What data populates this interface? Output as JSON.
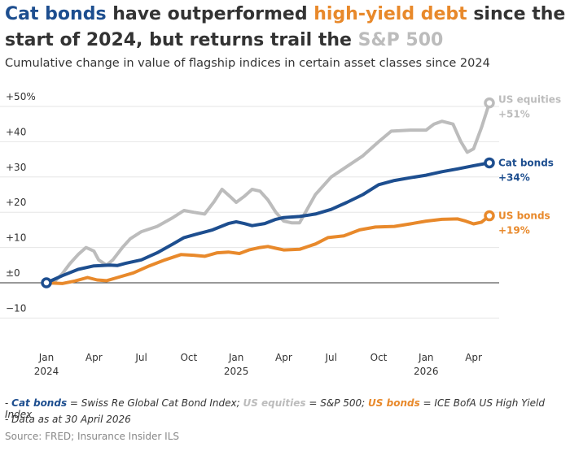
{
  "title": {
    "part1": "Cat bonds",
    "part2": " have outperformed ",
    "part3": "high-yield debt",
    "part4": " since the start of 2024, but returns trail the ",
    "part5": "S&P 500"
  },
  "subtitle": "Cumulative change in value of flagship indices in certain asset classes since 2024",
  "notes": {
    "cat_label": "Cat bonds",
    "cat_text": " = Swiss Re Global Cat Bond Index; ",
    "us_eq_label": "US equities",
    "us_eq_text": " = S&P 500; ",
    "us_bonds_label": "US bonds",
    "us_bonds_text": " = ICE BofA US High Yield Index",
    "data_date": "- Data as at 30 April 2026"
  },
  "source": "Source: FRED; Insurance Insider ILS",
  "colors": {
    "cat_bonds": "#1d4e8f",
    "us_equities": "#bcbcbc",
    "us_bonds": "#e8892b",
    "grid": "#e6e6e6",
    "zero_line": "#333333"
  },
  "chart_data": {
    "type": "line",
    "ylim": [
      -10,
      50
    ],
    "y_ticks": [
      50,
      40,
      30,
      20,
      10,
      0,
      -10
    ],
    "y_tick_labels": [
      "+50%",
      "+40",
      "+30",
      "+20",
      "+10",
      "±0",
      "−10"
    ],
    "x_ticks": [
      {
        "x": 0,
        "label": "Jan",
        "year": "2024"
      },
      {
        "x": 3,
        "label": "Apr",
        "year": ""
      },
      {
        "x": 6,
        "label": "Jul",
        "year": ""
      },
      {
        "x": 9,
        "label": "Oct",
        "year": ""
      },
      {
        "x": 12,
        "label": "Jan",
        "year": "2025"
      },
      {
        "x": 15,
        "label": "Apr",
        "year": ""
      },
      {
        "x": 18,
        "label": "Jul",
        "year": ""
      },
      {
        "x": 21,
        "label": "Oct",
        "year": ""
      },
      {
        "x": 24,
        "label": "Jan",
        "year": "2026"
      },
      {
        "x": 27,
        "label": "Apr",
        "year": ""
      }
    ],
    "xlim": [
      0,
      28
    ],
    "series": [
      {
        "name": "US equities",
        "final_label": "+51%",
        "color": "#bcbcbc",
        "points": [
          [
            0,
            0
          ],
          [
            0.5,
            0.3
          ],
          [
            1,
            2.5
          ],
          [
            1.5,
            5.5
          ],
          [
            2,
            8
          ],
          [
            2.5,
            10
          ],
          [
            3,
            9
          ],
          [
            3.3,
            6.5
          ],
          [
            3.8,
            5
          ],
          [
            4.2,
            6.5
          ],
          [
            4.8,
            10
          ],
          [
            5.3,
            12.5
          ],
          [
            6,
            14.5
          ],
          [
            7,
            16
          ],
          [
            8,
            18.5
          ],
          [
            8.7,
            20.5
          ],
          [
            9.3,
            20
          ],
          [
            10,
            19.5
          ],
          [
            10.6,
            23
          ],
          [
            11.1,
            26.5
          ],
          [
            11.6,
            24.5
          ],
          [
            12,
            22.8
          ],
          [
            12.5,
            24.5
          ],
          [
            13,
            26.5
          ],
          [
            13.5,
            26
          ],
          [
            14,
            23.5
          ],
          [
            14.5,
            20
          ],
          [
            15,
            17.5
          ],
          [
            15.5,
            17
          ],
          [
            16,
            17
          ],
          [
            16.5,
            21
          ],
          [
            17,
            25
          ],
          [
            18,
            30
          ],
          [
            19,
            33
          ],
          [
            20,
            36
          ],
          [
            21,
            40
          ],
          [
            21.8,
            43
          ],
          [
            23,
            43.3
          ],
          [
            24,
            43.3
          ],
          [
            24.5,
            45
          ],
          [
            25,
            45.8
          ],
          [
            25.7,
            45
          ],
          [
            26.2,
            40
          ],
          [
            26.6,
            37
          ],
          [
            27,
            38
          ],
          [
            27.5,
            44
          ],
          [
            28,
            51
          ]
        ]
      },
      {
        "name": "Cat bonds",
        "final_label": "+34%",
        "color": "#1d4e8f",
        "points": [
          [
            0,
            0
          ],
          [
            1,
            2
          ],
          [
            2,
            3.8
          ],
          [
            3,
            4.8
          ],
          [
            4,
            5
          ],
          [
            4.5,
            4.9
          ],
          [
            5,
            5.5
          ],
          [
            6,
            6.5
          ],
          [
            7,
            8.5
          ],
          [
            8,
            11
          ],
          [
            8.7,
            12.8
          ],
          [
            9.5,
            13.8
          ],
          [
            10.5,
            15
          ],
          [
            11.5,
            16.8
          ],
          [
            12,
            17.3
          ],
          [
            12.5,
            16.8
          ],
          [
            13,
            16.2
          ],
          [
            13.8,
            16.8
          ],
          [
            14.5,
            18
          ],
          [
            15,
            18.5
          ],
          [
            16,
            18.8
          ],
          [
            17,
            19.5
          ],
          [
            18,
            20.8
          ],
          [
            19,
            22.8
          ],
          [
            20,
            25
          ],
          [
            21,
            27.8
          ],
          [
            22,
            29
          ],
          [
            23,
            29.8
          ],
          [
            24,
            30.5
          ],
          [
            25,
            31.5
          ],
          [
            26,
            32.3
          ],
          [
            27,
            33.2
          ],
          [
            28,
            34
          ]
        ]
      },
      {
        "name": "US bonds",
        "final_label": "+19%",
        "color": "#e8892b",
        "points": [
          [
            0,
            0
          ],
          [
            1,
            -0.2
          ],
          [
            1.8,
            0.5
          ],
          [
            2.6,
            1.5
          ],
          [
            3.2,
            0.8
          ],
          [
            3.8,
            0.6
          ],
          [
            4.5,
            1.5
          ],
          [
            5.5,
            2.8
          ],
          [
            6.5,
            4.8
          ],
          [
            7.5,
            6.5
          ],
          [
            8.5,
            8
          ],
          [
            9.3,
            7.8
          ],
          [
            10,
            7.5
          ],
          [
            10.8,
            8.5
          ],
          [
            11.5,
            8.7
          ],
          [
            12.2,
            8.3
          ],
          [
            12.8,
            9.3
          ],
          [
            13.5,
            10
          ],
          [
            14,
            10.3
          ],
          [
            14.5,
            9.8
          ],
          [
            15,
            9.3
          ],
          [
            16,
            9.5
          ],
          [
            17,
            11
          ],
          [
            17.8,
            12.8
          ],
          [
            18.8,
            13.3
          ],
          [
            19.8,
            15
          ],
          [
            20.8,
            15.8
          ],
          [
            22,
            16
          ],
          [
            23,
            16.7
          ],
          [
            24,
            17.5
          ],
          [
            25,
            18
          ],
          [
            26,
            18.1
          ],
          [
            26.5,
            17.5
          ],
          [
            27,
            16.7
          ],
          [
            27.5,
            17.2
          ],
          [
            28,
            19
          ]
        ]
      }
    ]
  }
}
